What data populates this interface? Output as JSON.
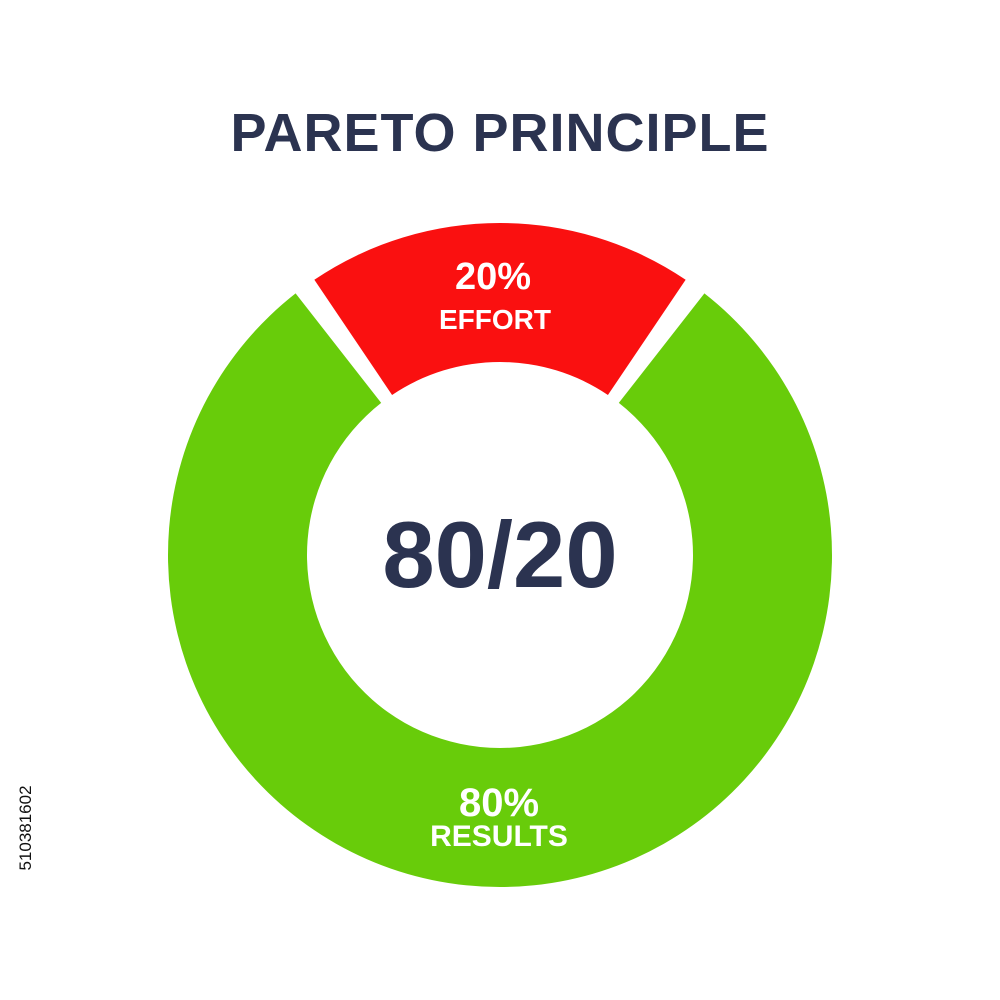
{
  "chart_data": {
    "type": "pie",
    "title": "PARETO PRINCIPLE",
    "center_label": "80/20",
    "slices": [
      {
        "value": 20,
        "percent_label": "20%",
        "name": "EFFORT",
        "color": "#fa1010"
      },
      {
        "value": 80,
        "percent_label": "80%",
        "name": "RESULTS",
        "color": "#68cc0a"
      }
    ]
  },
  "watermark_id": "510381602"
}
